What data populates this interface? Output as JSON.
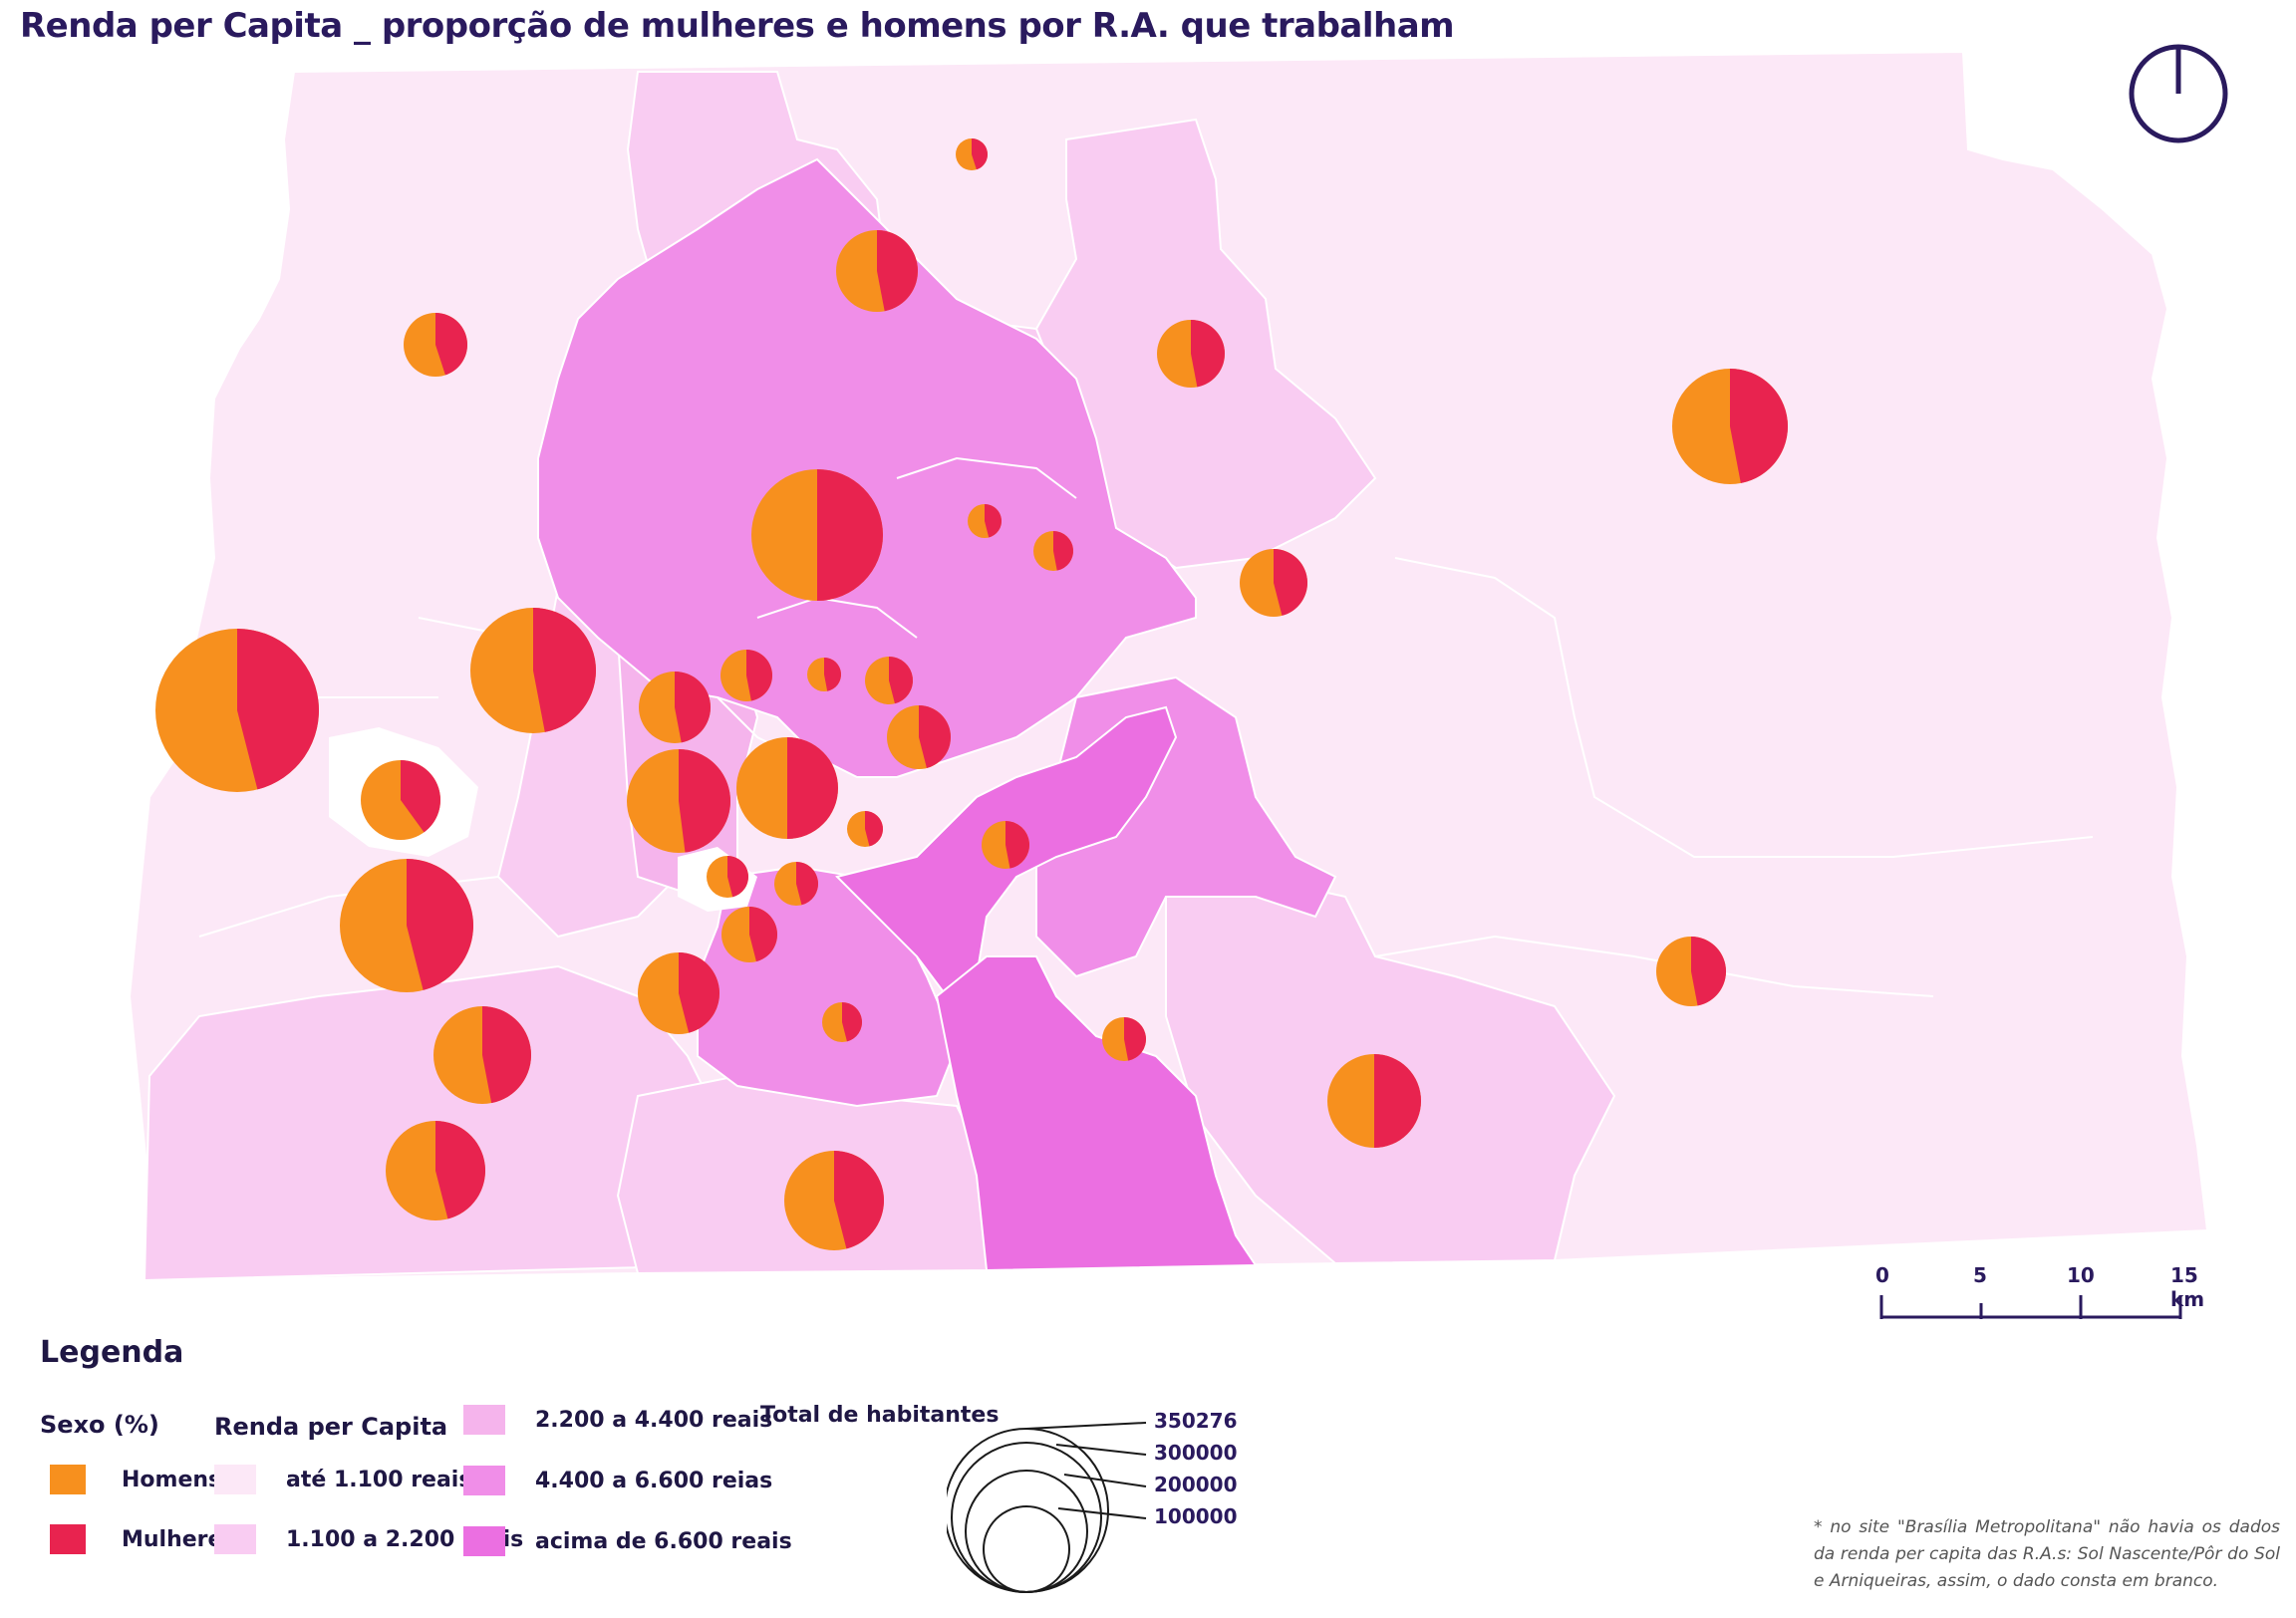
{
  "title": "Renda per Capita _ proporção de mulheres e homens por R.A. que trabalham",
  "colors": {
    "homens": "#f7901e",
    "mulheres": "#e8234f",
    "renda_ate_1100": "#fce8f7",
    "renda_1100_2200": "#f9ccf2",
    "renda_2200_4400": "#f5b4ec",
    "renda_4400_6600": "#f08ee8",
    "renda_acima_6600": "#eb6fe1",
    "no_data": "#ffffff",
    "text": "#2a1a5e"
  },
  "north_arrow": "north-arrow-icon",
  "scale": {
    "ticks": [
      "0",
      "5",
      "10",
      "15 km"
    ]
  },
  "legend": {
    "title": "Legenda",
    "sexo": {
      "heading": "Sexo (%)",
      "items": [
        {
          "label": "Homens",
          "color": "#f7901e"
        },
        {
          "label": "Mulheres",
          "color": "#e8234f"
        }
      ]
    },
    "renda": {
      "heading": "Renda per Capita",
      "items": [
        {
          "label": "até 1.100 reais",
          "color": "#fce8f7"
        },
        {
          "label": "1.100 a 2.200 reais",
          "color": "#f9ccf2"
        },
        {
          "label": "2.200 a 4.400 reais",
          "color": "#f5b4ec"
        },
        {
          "label": "4.400 a 6.600 reias",
          "color": "#f08ee8"
        },
        {
          "label": "acima de 6.600 reais",
          "color": "#eb6fe1"
        }
      ]
    },
    "habitantes": {
      "heading": "Total de habitantes",
      "values": [
        "350276",
        "300000",
        "200000",
        "100000"
      ]
    }
  },
  "footnote": "* no site \"Brasília Metropolitana\" não havia os dados da renda per capita das R.A.s: Sol Nascente/Pôr do Sol e Arniqueiras, assim, o dado consta em branco."
}
